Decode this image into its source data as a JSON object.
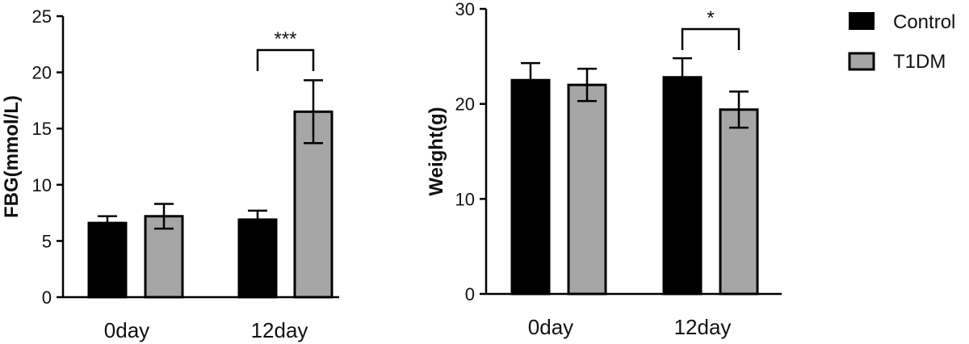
{
  "chart_data": [
    {
      "type": "bar",
      "categories": [
        "0day",
        "12day"
      ],
      "ylabel": "FBG(mmol/L)",
      "ylim": [
        0,
        25
      ],
      "yticks": [
        0,
        5,
        10,
        15,
        20,
        25
      ],
      "series": [
        {
          "name": "Control",
          "values": [
            6.6,
            6.9
          ],
          "errors": [
            0.6,
            0.8
          ]
        },
        {
          "name": "T1DM",
          "values": [
            7.2,
            16.5
          ],
          "errors": [
            1.1,
            2.8
          ]
        }
      ],
      "significance": [
        {
          "category": "12day",
          "label": "***"
        }
      ]
    },
    {
      "type": "bar",
      "categories": [
        "0day",
        "12day"
      ],
      "ylabel": "Weight(g)",
      "ylim": [
        0,
        30
      ],
      "yticks": [
        0,
        10,
        20,
        30
      ],
      "series": [
        {
          "name": "Control",
          "values": [
            22.5,
            22.8
          ],
          "errors": [
            1.8,
            2.0
          ]
        },
        {
          "name": "T1DM",
          "values": [
            22.0,
            19.4
          ],
          "errors": [
            1.7,
            1.9
          ]
        }
      ],
      "significance": [
        {
          "category": "12day",
          "label": "*"
        }
      ]
    }
  ],
  "legend": {
    "position": "right",
    "entries": [
      {
        "label": "Control",
        "color": "#000000"
      },
      {
        "label": "T1DM",
        "color": "#a6a6a6"
      }
    ]
  },
  "colors": {
    "Control": "#000000",
    "T1DM": "#a6a6a6",
    "axis": "#000000"
  }
}
